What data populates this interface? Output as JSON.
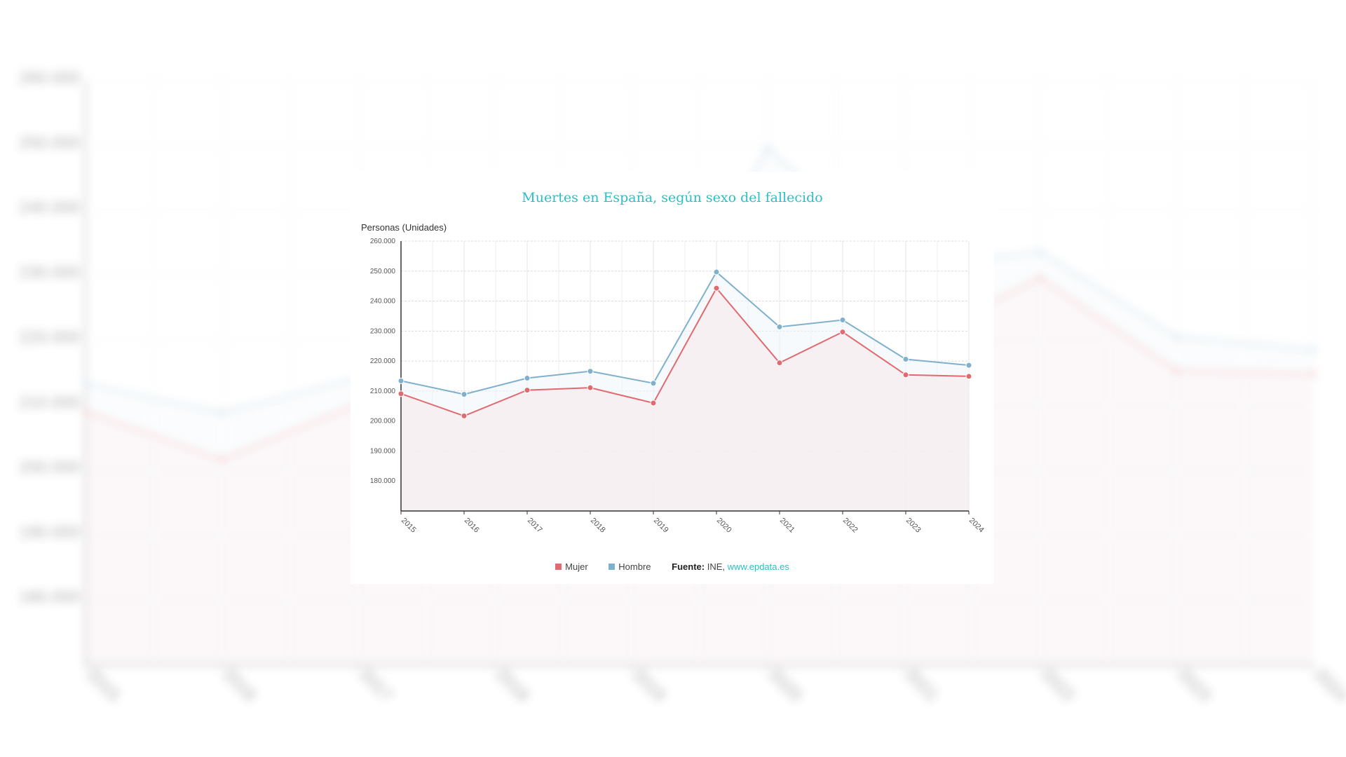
{
  "chart_data": {
    "type": "line",
    "title": "Muertes en España, según sexo del fallecido",
    "ylabel": "Personas (Unidades)",
    "xlabel": "",
    "categories": [
      "2015",
      "2016",
      "2017",
      "2018",
      "2019",
      "2020",
      "2021",
      "2022",
      "2023",
      "2024"
    ],
    "ylim": [
      170000,
      260000
    ],
    "yticks": [
      180000,
      190000,
      200000,
      210000,
      220000,
      230000,
      240000,
      250000,
      260000
    ],
    "ytick_labels": [
      "180.000",
      "190.000",
      "200.000",
      "210.000",
      "220.000",
      "230.000",
      "240.000",
      "250.000",
      "260.000"
    ],
    "grid": true,
    "legend_placement": "bottom",
    "series": [
      {
        "name": "Mujer",
        "color": "#e06a6f",
        "values": [
          209100,
          201700,
          210300,
          211100,
          206000,
          244300,
          219400,
          229700,
          215400,
          214900
        ]
      },
      {
        "name": "Hombre",
        "color": "#7fb0cc",
        "values": [
          213400,
          208900,
          214300,
          216600,
          212600,
          249700,
          231400,
          233700,
          220600,
          218600
        ]
      }
    ],
    "source_label": "Fuente:",
    "source_text": "INE,",
    "source_link": "www.epdata.es"
  }
}
